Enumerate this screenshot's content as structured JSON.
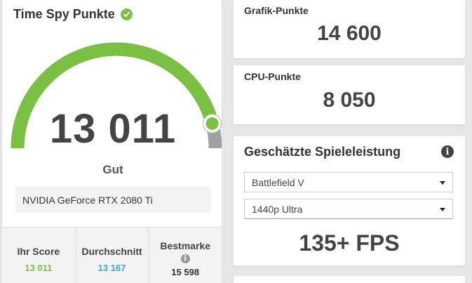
{
  "score_card": {
    "title": "Time Spy Punkte",
    "score": "13 011",
    "score_fraction": 0.92,
    "rating": "Gut",
    "gpu": "NVIDIA GeForce RTX 2080 Ti",
    "stats": {
      "your_score_label": "Ihr Score",
      "your_score_value": "13 011",
      "average_label": "Durchschnitt",
      "average_value": "13 167",
      "best_label": "Bestmarke",
      "best_value": "15 598"
    }
  },
  "graphics": {
    "label": "Grafik-Punkte",
    "value": "14 600"
  },
  "cpu": {
    "label": "CPU-Punkte",
    "value": "8 050"
  },
  "game_perf": {
    "title": "Geschätzte Spieleleistung",
    "game_selected": "Battlefield V",
    "preset_selected": "1440p Ultra",
    "fps": "135+ FPS"
  },
  "colors": {
    "green": "#7ac143",
    "gauge_track": "#a0a0a0",
    "your_score": "#7ac143",
    "average": "#3aa8dc",
    "select_focus": "#e88a3b"
  }
}
